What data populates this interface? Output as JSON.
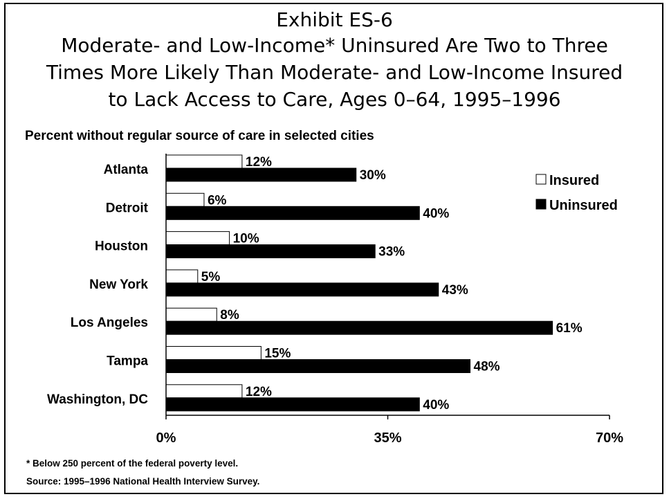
{
  "title_lines": [
    "Exhibit ES-6",
    "Moderate- and Low-Income* Uninsured Are Two to Three",
    "Times More Likely Than Moderate- and Low-Income Insured",
    "to Lack Access to Care, Ages 0–64, 1995–1996"
  ],
  "subtitle": "Percent without regular source of care in selected cities",
  "footnotes": [
    "* Below 250 percent of the federal poverty level.",
    "Source: 1995–1996 National Health Interview Survey."
  ],
  "colors": {
    "insured_fill": "#ffffff",
    "uninsured_fill": "#000000",
    "outline": "#000000"
  },
  "chart_data": {
    "type": "bar",
    "orientation": "horizontal",
    "categories": [
      "Atlanta",
      "Detroit",
      "Houston",
      "New York",
      "Los Angeles",
      "Tampa",
      "Washington, DC"
    ],
    "series": [
      {
        "name": "Insured",
        "values": [
          12,
          6,
          10,
          5,
          8,
          15,
          12
        ],
        "labels": [
          "12%",
          "6%",
          "10%",
          "5%",
          "8%",
          "15%",
          "12%"
        ]
      },
      {
        "name": "Uninsured",
        "values": [
          30,
          40,
          33,
          43,
          61,
          48,
          40
        ],
        "labels": [
          "30%",
          "40%",
          "33%",
          "43%",
          "61%",
          "48%",
          "40%"
        ]
      }
    ],
    "xlim": [
      0,
      70
    ],
    "xticks": [
      0,
      35,
      70
    ],
    "xtick_labels": [
      "0%",
      "35%",
      "70%"
    ],
    "legend_position": "right",
    "grid": false
  }
}
